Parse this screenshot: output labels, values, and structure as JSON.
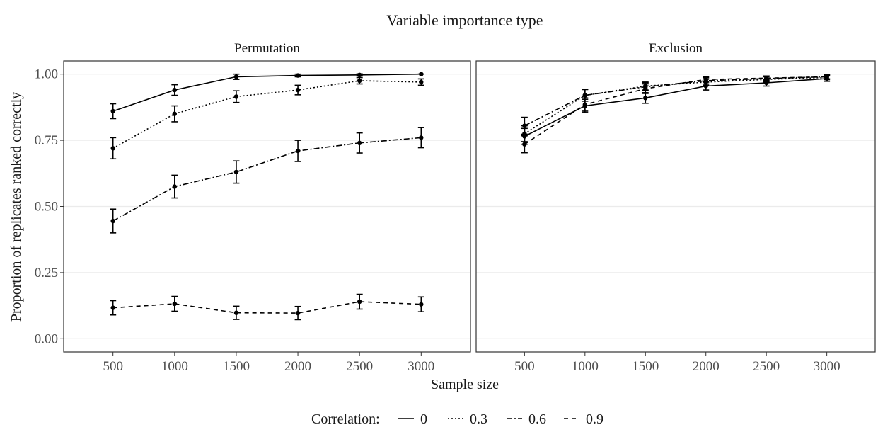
{
  "chart_data": {
    "type": "line",
    "title": "Variable importance type",
    "xlabel": "Sample size",
    "ylabel": "Proportion of replicates ranked correctly",
    "x": [
      500,
      1000,
      1500,
      2000,
      2500,
      3000
    ],
    "x_ticks": [
      "500",
      "1000",
      "1500",
      "2000",
      "2500",
      "3000"
    ],
    "xlim": [
      100,
      3400
    ],
    "y_ticks": [
      "0.00",
      "0.25",
      "0.50",
      "0.75",
      "1.00"
    ],
    "ylim": [
      -0.05,
      1.05
    ],
    "grid": "horizontal",
    "legend": {
      "title": "Correlation:",
      "position": "bottom",
      "entries": [
        {
          "label": "0",
          "linestyle": "solid"
        },
        {
          "label": "0.3",
          "linestyle": "dotted"
        },
        {
          "label": "0.6",
          "linestyle": "dashdot"
        },
        {
          "label": "0.9",
          "linestyle": "dashed"
        }
      ]
    },
    "panels": [
      {
        "title": "Permutation",
        "series": [
          {
            "name": "0",
            "values": [
              0.86,
              0.94,
              0.99,
              0.995,
              0.997,
              1.0
            ],
            "error": [
              0.028,
              0.02,
              0.01,
              0.005,
              0.004,
              0.0
            ]
          },
          {
            "name": "0.3",
            "values": [
              0.72,
              0.85,
              0.915,
              0.94,
              0.975,
              0.97
            ],
            "error": [
              0.04,
              0.03,
              0.022,
              0.018,
              0.012,
              0.012
            ]
          },
          {
            "name": "0.6",
            "values": [
              0.445,
              0.575,
              0.63,
              0.71,
              0.74,
              0.76
            ],
            "error": [
              0.045,
              0.043,
              0.042,
              0.04,
              0.038,
              0.038
            ]
          },
          {
            "name": "0.9",
            "values": [
              0.117,
              0.132,
              0.098,
              0.097,
              0.14,
              0.13
            ],
            "error": [
              0.027,
              0.028,
              0.025,
              0.025,
              0.028,
              0.028
            ]
          }
        ]
      },
      {
        "title": "Exclusion",
        "series": [
          {
            "name": "0",
            "values": [
              0.765,
              0.88,
              0.91,
              0.955,
              0.967,
              0.983
            ],
            "error": [
              0.03,
              0.025,
              0.02,
              0.015,
              0.012,
              0.01
            ]
          },
          {
            "name": "0.3",
            "values": [
              0.775,
              0.92,
              0.955,
              0.97,
              0.98,
              0.987
            ],
            "error": [
              0.03,
              0.022,
              0.015,
              0.012,
              0.01,
              0.008
            ]
          },
          {
            "name": "0.6",
            "values": [
              0.805,
              0.92,
              0.952,
              0.975,
              0.983,
              0.99
            ],
            "error": [
              0.032,
              0.022,
              0.015,
              0.012,
              0.01,
              0.008
            ]
          },
          {
            "name": "0.9",
            "values": [
              0.735,
              0.885,
              0.945,
              0.98,
              0.985,
              0.99
            ],
            "error": [
              0.032,
              0.025,
              0.018,
              0.01,
              0.008,
              0.008
            ]
          }
        ]
      }
    ]
  }
}
